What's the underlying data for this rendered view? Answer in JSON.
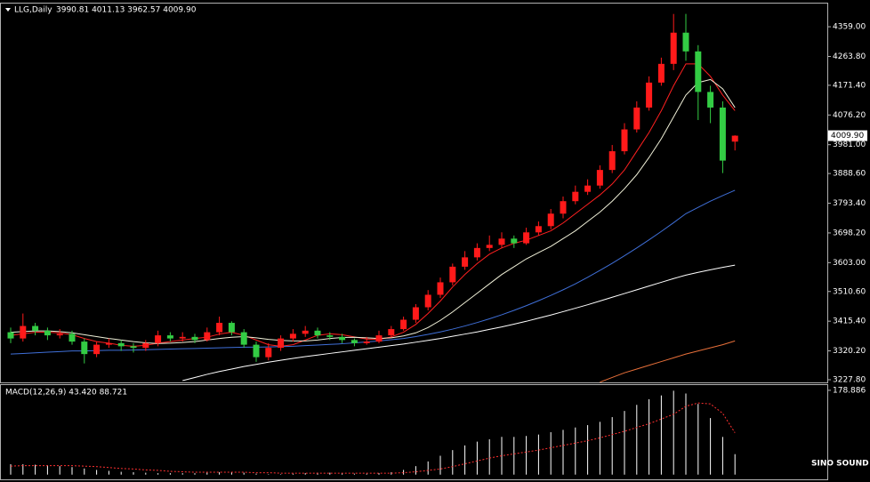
{
  "chart_data": [
    {
      "type": "candlestick",
      "title": "LLG,Daily",
      "subtitle": "3990.81 4011.13 3962.57 4009.90",
      "up_color": "#ff1a1a",
      "down_color": "#33cc44",
      "open": [
        3380,
        3360,
        3400,
        3385,
        3370,
        3375,
        3350,
        3310,
        3340,
        3345,
        3335,
        3330,
        3345,
        3370,
        3360,
        3365,
        3355,
        3380,
        3410,
        3380,
        3340,
        3300,
        3330,
        3360,
        3375,
        3385,
        3370,
        3365,
        3355,
        3345,
        3350,
        3370,
        3390,
        3420,
        3460,
        3500,
        3540,
        3590,
        3620,
        3650,
        3660,
        3680,
        3665,
        3700,
        3720,
        3760,
        3800,
        3830,
        3850,
        3900,
        3960,
        4030,
        4100,
        4180,
        4240,
        4340,
        4280,
        4150,
        4100,
        3990.81
      ],
      "high": [
        3395,
        3440,
        3410,
        3395,
        3390,
        3385,
        3360,
        3350,
        3360,
        3355,
        3345,
        3355,
        3385,
        3380,
        3380,
        3375,
        3395,
        3430,
        3415,
        3390,
        3350,
        3345,
        3370,
        3390,
        3400,
        3395,
        3380,
        3375,
        3360,
        3365,
        3385,
        3400,
        3430,
        3470,
        3515,
        3555,
        3600,
        3640,
        3665,
        3690,
        3700,
        3690,
        3715,
        3735,
        3775,
        3815,
        3850,
        3870,
        3915,
        3980,
        4050,
        4120,
        4200,
        4260,
        4400,
        4400,
        4300,
        4170,
        4120,
        4011.13
      ],
      "low": [
        3345,
        3350,
        3370,
        3355,
        3360,
        3340,
        3280,
        3300,
        3330,
        3320,
        3315,
        3320,
        3335,
        3350,
        3350,
        3345,
        3350,
        3370,
        3370,
        3330,
        3285,
        3290,
        3320,
        3350,
        3365,
        3360,
        3355,
        3345,
        3335,
        3340,
        3345,
        3365,
        3385,
        3410,
        3450,
        3490,
        3530,
        3580,
        3610,
        3640,
        3650,
        3650,
        3660,
        3690,
        3710,
        3745,
        3790,
        3820,
        3840,
        3890,
        3950,
        4020,
        4090,
        4170,
        4220,
        4250,
        4060,
        4050,
        3890,
        3962.57
      ],
      "close": [
        3360,
        3400,
        3385,
        3370,
        3375,
        3350,
        3310,
        3340,
        3345,
        3335,
        3330,
        3345,
        3370,
        3360,
        3365,
        3355,
        3380,
        3410,
        3380,
        3340,
        3300,
        3330,
        3360,
        3375,
        3385,
        3370,
        3365,
        3355,
        3345,
        3350,
        3370,
        3390,
        3420,
        3460,
        3500,
        3540,
        3590,
        3620,
        3650,
        3660,
        3680,
        3665,
        3700,
        3720,
        3760,
        3800,
        3830,
        3850,
        3900,
        3960,
        4030,
        4100,
        4180,
        4240,
        4340,
        4280,
        4150,
        4100,
        3930,
        4009.9
      ],
      "series": [
        {
          "color": "#ff2020",
          "values": [
            3370,
            3375,
            3380,
            3380,
            3378,
            3372,
            3360,
            3350,
            3345,
            3338,
            3335,
            3338,
            3345,
            3350,
            3355,
            3360,
            3364,
            3374,
            3380,
            3370,
            3355,
            3340,
            3335,
            3340,
            3355,
            3370,
            3375,
            3372,
            3365,
            3358,
            3357,
            3365,
            3380,
            3405,
            3440,
            3480,
            3525,
            3565,
            3600,
            3630,
            3650,
            3665,
            3675,
            3690,
            3705,
            3730,
            3760,
            3790,
            3820,
            3855,
            3900,
            3960,
            4020,
            4090,
            4170,
            4240,
            4240,
            4200,
            4140,
            4090
          ]
        },
        {
          "color": "#f0f0d8",
          "values": [
            3380,
            3382,
            3384,
            3384,
            3382,
            3378,
            3372,
            3366,
            3360,
            3355,
            3350,
            3346,
            3344,
            3345,
            3347,
            3350,
            3355,
            3360,
            3364,
            3366,
            3362,
            3357,
            3354,
            3352,
            3352,
            3355,
            3360,
            3363,
            3364,
            3362,
            3360,
            3362,
            3368,
            3378,
            3395,
            3418,
            3445,
            3475,
            3505,
            3535,
            3565,
            3590,
            3615,
            3635,
            3655,
            3680,
            3705,
            3735,
            3765,
            3800,
            3840,
            3885,
            3940,
            4000,
            4070,
            4140,
            4180,
            4190,
            4160,
            4100
          ]
        },
        {
          "color": "#3f6fd8",
          "values": [
            3310,
            3312,
            3314,
            3316,
            3318,
            3320,
            3320,
            3321,
            3322,
            3322,
            3323,
            3324,
            3325,
            3326,
            3327,
            3328,
            3329,
            3330,
            3331,
            3332,
            3332,
            3333,
            3334,
            3335,
            3337,
            3339,
            3341,
            3343,
            3346,
            3349,
            3352,
            3356,
            3360,
            3366,
            3373,
            3381,
            3390,
            3400,
            3411,
            3423,
            3436,
            3450,
            3465,
            3481,
            3498,
            3516,
            3535,
            3556,
            3578,
            3601,
            3625,
            3650,
            3676,
            3703,
            3731,
            3760,
            3780,
            3800,
            3818,
            3835
          ]
        },
        {
          "color": "#ffffff",
          "values": [
            null,
            null,
            null,
            null,
            null,
            null,
            null,
            null,
            null,
            null,
            null,
            null,
            null,
            null,
            3225,
            3235,
            3245,
            3254,
            3262,
            3270,
            3277,
            3284,
            3290,
            3296,
            3302,
            3307,
            3312,
            3317,
            3322,
            3327,
            3332,
            3337,
            3342,
            3348,
            3354,
            3360,
            3367,
            3374,
            3381,
            3389,
            3397,
            3406,
            3415,
            3425,
            3435,
            3446,
            3457,
            3468,
            3480,
            3492,
            3504,
            3516,
            3528,
            3540,
            3552,
            3563,
            3572,
            3580,
            3588,
            3595
          ]
        },
        {
          "color": "#e8703a",
          "values": [
            null,
            null,
            null,
            null,
            null,
            null,
            null,
            null,
            null,
            null,
            null,
            null,
            null,
            null,
            null,
            null,
            null,
            null,
            null,
            null,
            null,
            null,
            null,
            null,
            null,
            null,
            null,
            null,
            null,
            null,
            null,
            null,
            null,
            null,
            null,
            null,
            null,
            null,
            null,
            null,
            null,
            null,
            null,
            null,
            null,
            null,
            null,
            null,
            3220,
            3235,
            3250,
            3262,
            3274,
            3286,
            3298,
            3310,
            3320,
            3330,
            3340,
            3352
          ]
        }
      ],
      "last_price": {
        "value": 4009.9,
        "label": "4009.90"
      },
      "ylim": [
        3219.2,
        4433.3
      ],
      "yticks": [
        {
          "value": 4359,
          "label": "4359.00"
        },
        {
          "value": 4263.8,
          "label": "4263.80"
        },
        {
          "value": 4171.4,
          "label": "4171.40"
        },
        {
          "value": 4076.2,
          "label": "4076.20"
        },
        {
          "value": 3981,
          "label": "3981.00"
        },
        {
          "value": 3888.6,
          "label": "3888.60"
        },
        {
          "value": 3793.4,
          "label": "3793.40"
        },
        {
          "value": 3698.2,
          "label": "3698.20"
        },
        {
          "value": 3603,
          "label": "3603.00"
        },
        {
          "value": 3510.6,
          "label": "3510.60"
        },
        {
          "value": 3415.4,
          "label": "3415.40"
        },
        {
          "value": 3320.2,
          "label": "3320.20"
        },
        {
          "value": 3227.8,
          "label": "3227.80"
        }
      ]
    },
    {
      "type": "macd",
      "title": "MACD(12,26,9) 43.420 88.721",
      "ylim": [
        -10,
        190
      ],
      "yticks": [
        178.886
      ],
      "series": [
        {
          "color": "#ffffff",
          "values": [
            22,
            22,
            21,
            20,
            18,
            16,
            13,
            10,
            8,
            6,
            5,
            4,
            3,
            3,
            3,
            3,
            4,
            5,
            5,
            4,
            2,
            1,
            1,
            2,
            3,
            4,
            4,
            3,
            2,
            2,
            3,
            5,
            10,
            18,
            28,
            40,
            52,
            62,
            70,
            75,
            80,
            80,
            82,
            85,
            90,
            95,
            100,
            105,
            112,
            122,
            135,
            148,
            160,
            168,
            178,
            172,
            150,
            120,
            80,
            43.42
          ]
        },
        {
          "color": "#ff3030",
          "values": [
            18,
            19,
            19,
            19,
            19,
            19,
            18,
            17,
            15,
            13,
            12,
            10,
            9,
            7,
            6,
            5,
            5,
            5,
            5,
            5,
            4,
            4,
            3,
            3,
            3,
            3,
            3,
            3,
            3,
            3,
            3,
            3,
            4,
            6,
            9,
            12,
            17,
            23,
            29,
            35,
            40,
            44,
            48,
            52,
            57,
            62,
            67,
            72,
            78,
            85,
            92,
            100,
            108,
            118,
            128,
            145,
            152,
            150,
            130,
            88.721
          ]
        }
      ]
    }
  ],
  "watermark": "SINO SOUND"
}
